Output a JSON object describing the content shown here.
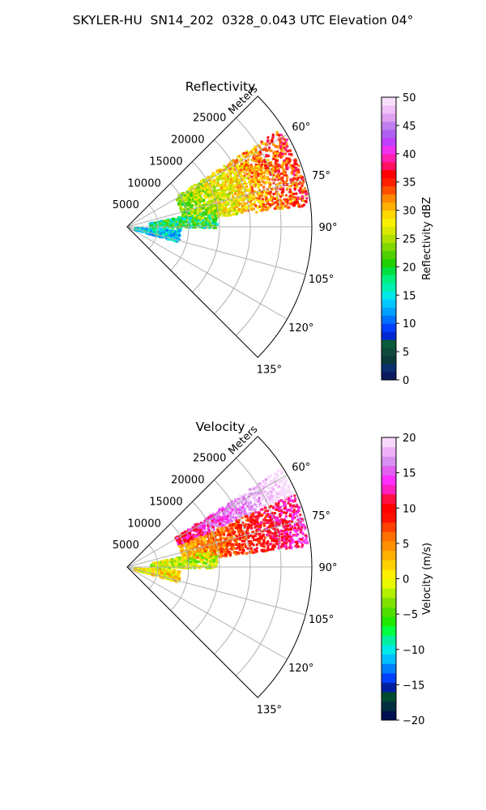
{
  "figure": {
    "suptitle": "SKYLER-HU  SN14_202  0328_0.043 UTC Elevation 04°"
  },
  "chart_data": [
    {
      "type": "polar-sector",
      "title": "Reflectivity",
      "radial_label": "Meters",
      "r_ticks": [
        "5000",
        "10000",
        "15000",
        "20000",
        "25000"
      ],
      "r_tick_values": [
        5000,
        10000,
        15000,
        20000,
        25000
      ],
      "r_max": 30000,
      "theta_ticks": [
        "60°",
        "75°",
        "90°",
        "105°",
        "120°",
        "135°"
      ],
      "theta_tick_values": [
        60,
        75,
        90,
        105,
        120,
        135
      ],
      "theta_range": [
        45,
        135
      ],
      "colorbar": {
        "label": "Reflectivity dBZ",
        "min": 0,
        "max": 50,
        "ticks": [
          "0",
          "5",
          "10",
          "15",
          "20",
          "25",
          "30",
          "35",
          "40",
          "45",
          "50"
        ],
        "tick_values": [
          0,
          5,
          10,
          15,
          20,
          25,
          30,
          35,
          40,
          45,
          50
        ]
      }
    },
    {
      "type": "polar-sector",
      "title": "Velocity",
      "radial_label": "Meters",
      "r_ticks": [
        "5000",
        "10000",
        "15000",
        "20000",
        "25000"
      ],
      "r_tick_values": [
        5000,
        10000,
        15000,
        20000,
        25000
      ],
      "r_max": 30000,
      "theta_ticks": [
        "60°",
        "75°",
        "90°",
        "105°",
        "120°",
        "135°"
      ],
      "theta_tick_values": [
        60,
        75,
        90,
        105,
        120,
        135
      ],
      "theta_range": [
        45,
        135
      ],
      "colorbar": {
        "label": "Velocity (m/s)",
        "min": -20,
        "max": 20,
        "ticks": [
          "−20",
          "−15",
          "−10",
          "−5",
          "0",
          "5",
          "10",
          "15",
          "20"
        ],
        "tick_values": [
          -20,
          -15,
          -10,
          -5,
          0,
          5,
          10,
          15,
          20
        ]
      }
    }
  ],
  "colormaps": {
    "reflectivity": [
      "#0a1a5c",
      "#0a2e6e",
      "#0b3a3a",
      "#0e4a3c",
      "#0a5a3a",
      "#0028d0",
      "#0040ff",
      "#0070ff",
      "#00a0ff",
      "#00c8ff",
      "#00e8e8",
      "#00f0b0",
      "#00f080",
      "#00e040",
      "#20d000",
      "#50d000",
      "#80d800",
      "#b0e000",
      "#d8e800",
      "#f8f000",
      "#ffd800",
      "#ffb000",
      "#ff8800",
      "#ff5000",
      "#ff2000",
      "#ff0000",
      "#ff1060",
      "#ff20b0",
      "#f030f0",
      "#c040ff",
      "#b060f0",
      "#c080f0",
      "#e0a0f0",
      "#f0c0f8",
      "#f8e0fc"
    ],
    "velocity": [
      "#001050",
      "#003040",
      "#004a30",
      "#0020a0",
      "#0040ff",
      "#0080ff",
      "#00c0ff",
      "#00e8e8",
      "#00f0a0",
      "#00ff40",
      "#20e800",
      "#50e000",
      "#80e000",
      "#b0f000",
      "#e8f800",
      "#ffee00",
      "#ffd000",
      "#ffb000",
      "#ff9000",
      "#ff7000",
      "#ff4000",
      "#ff1000",
      "#ff0000",
      "#ff1040",
      "#ff20c0",
      "#ff30ff",
      "#e060f0",
      "#d890f0",
      "#f0b0f8",
      "#f8d8fc"
    ]
  }
}
